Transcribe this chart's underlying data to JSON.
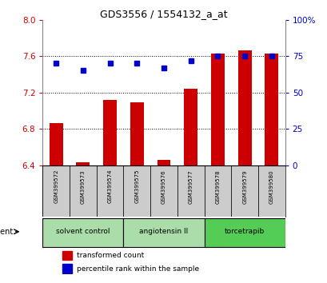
{
  "title": "GDS3556 / 1554132_a_at",
  "samples": [
    "GSM399572",
    "GSM399573",
    "GSM399574",
    "GSM399575",
    "GSM399576",
    "GSM399577",
    "GSM399578",
    "GSM399579",
    "GSM399580"
  ],
  "red_values": [
    6.86,
    6.43,
    7.12,
    7.09,
    6.46,
    7.24,
    7.63,
    7.66,
    7.63
  ],
  "blue_values": [
    70,
    65,
    70,
    70,
    67,
    72,
    75,
    75,
    75
  ],
  "ylim_left": [
    6.4,
    8.0
  ],
  "yticks_left": [
    6.4,
    6.8,
    7.2,
    7.6,
    8.0
  ],
  "ylim_right": [
    0,
    100
  ],
  "yticks_right": [
    0,
    25,
    50,
    75,
    100
  ],
  "ytick_labels_right": [
    "0",
    "25",
    "50",
    "75",
    "100%"
  ],
  "bar_color": "#cc0000",
  "dot_color": "#0000cc",
  "agent_groups": [
    {
      "label": "solvent control",
      "start": 0,
      "end": 2,
      "color": "#aaddaa"
    },
    {
      "label": "angiotensin II",
      "start": 3,
      "end": 5,
      "color": "#aaddaa"
    },
    {
      "label": "torcetrapib",
      "start": 6,
      "end": 8,
      "color": "#55cc55"
    }
  ],
  "agent_label": "agent",
  "legend_red": "transformed count",
  "legend_blue": "percentile rank within the sample",
  "tick_label_color_left": "#cc0000",
  "tick_label_color_right": "#0000cc",
  "background_color": "#ffffff",
  "sample_box_color": "#cccccc"
}
